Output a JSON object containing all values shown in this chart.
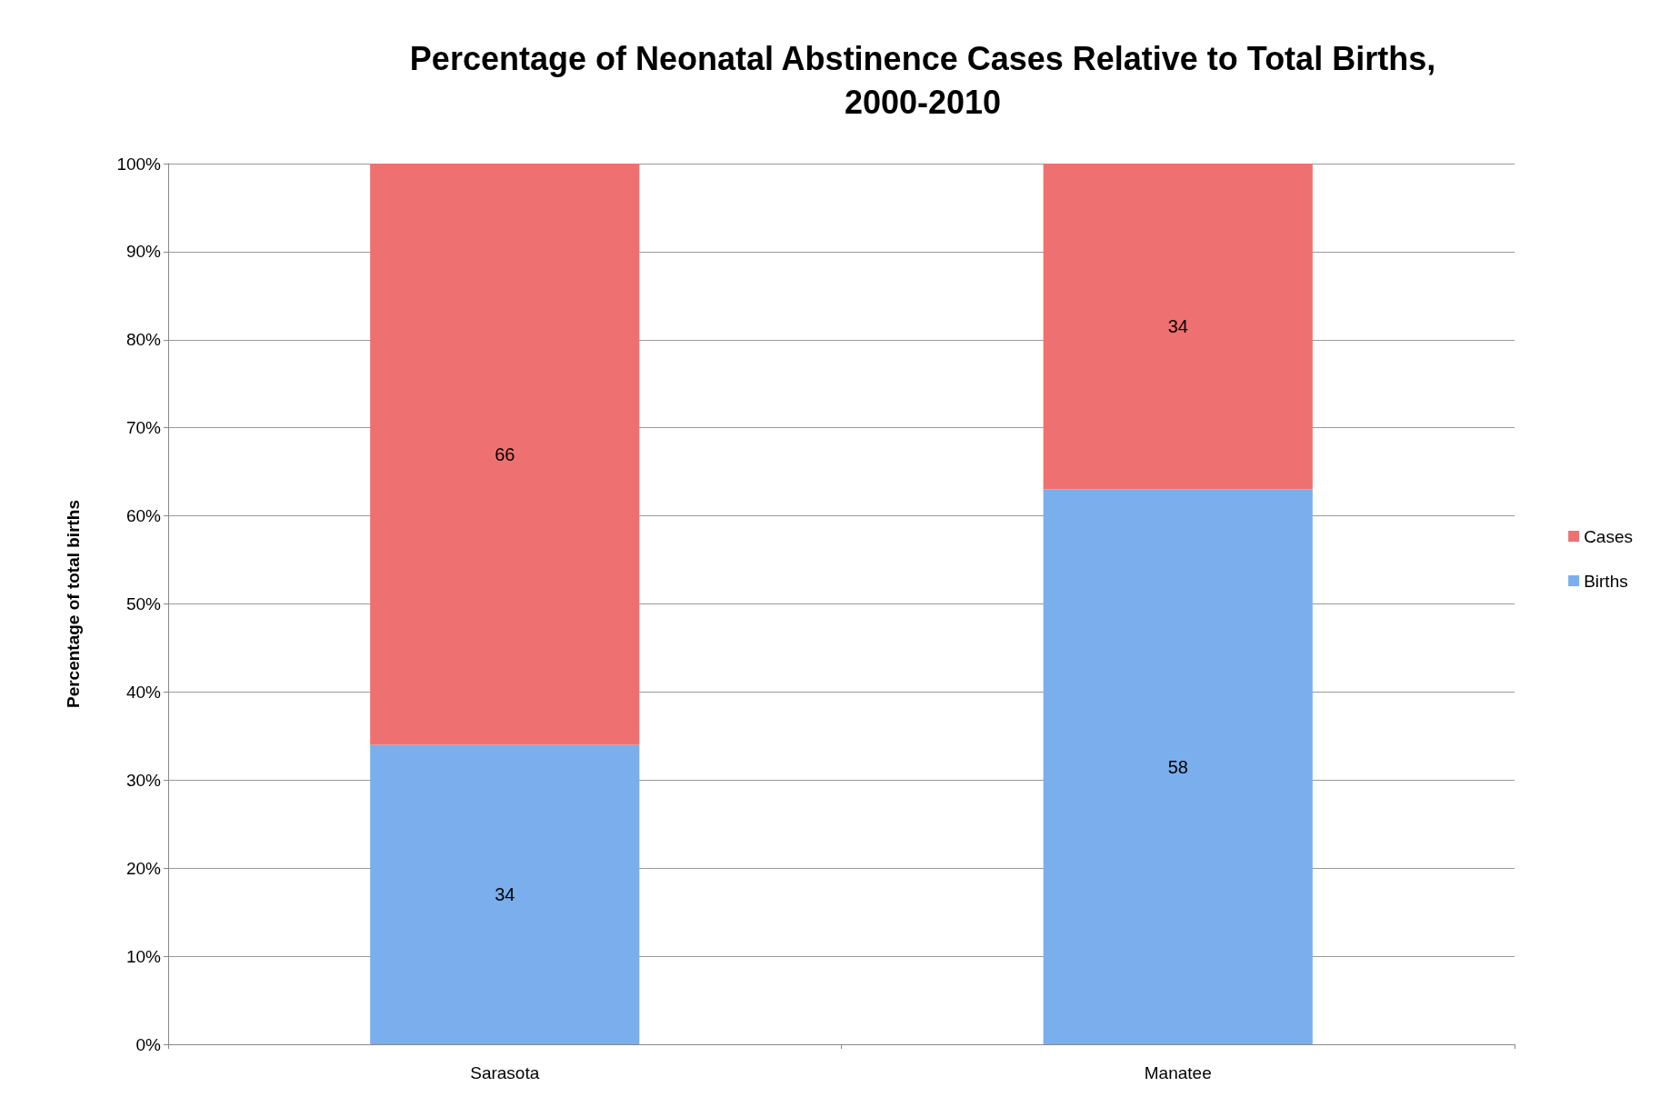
{
  "chart_data": {
    "type": "bar",
    "title": "Percentage of Neonatal Abstinence Cases Relative to Total Births,\n2000-2010",
    "ylabel": "Percentage of total births",
    "categories": [
      "Sarasota",
      "Manatee"
    ],
    "stacked": true,
    "series": [
      {
        "name": "Births",
        "color": "#7aaeec",
        "values": [
          34,
          63
        ]
      },
      {
        "name": "Cases",
        "color": "#ef7070",
        "values": [
          66,
          37
        ]
      }
    ],
    "annotations": [
      "34",
      "66",
      "58",
      "34"
    ],
    "ylim": [
      0,
      100
    ],
    "yticks": [
      {
        "value": 0,
        "label": "0%"
      },
      {
        "value": 10,
        "label": "10%"
      },
      {
        "value": 20,
        "label": "20%"
      },
      {
        "value": 30,
        "label": "30%"
      },
      {
        "value": 40,
        "label": "40%"
      },
      {
        "value": 50,
        "label": "50%"
      },
      {
        "value": 60,
        "label": "60%"
      },
      {
        "value": 70,
        "label": "70%"
      },
      {
        "value": 80,
        "label": "80%"
      },
      {
        "value": 90,
        "label": "90%"
      },
      {
        "value": 100,
        "label": "100%"
      }
    ],
    "grid": "y",
    "legend": "right"
  }
}
